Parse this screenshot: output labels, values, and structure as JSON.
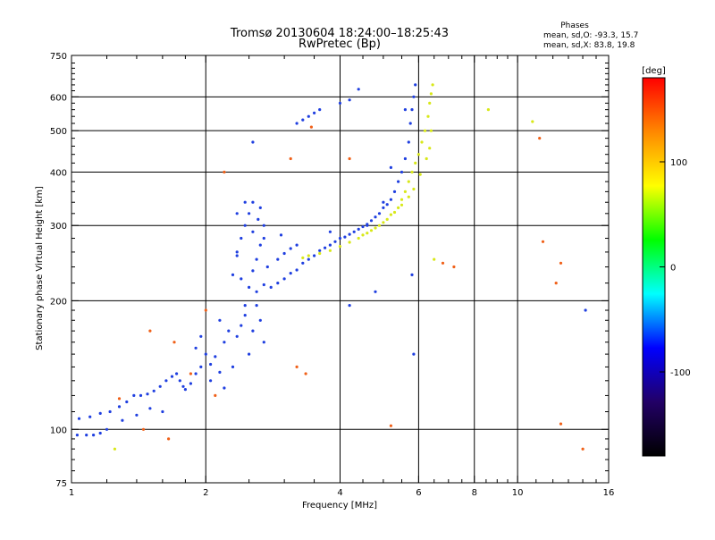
{
  "chart_data": {
    "type": "scatter",
    "title": "Tromsø 20130604 18:24:00–18:25:43",
    "subtitle": "RwPretec (Bp)",
    "stats": {
      "heading": "Phases",
      "line1": "mean, sd,O: -93.3, 15.7",
      "line2": "mean, sd,X:  83.8, 19.8"
    },
    "xlabel": "Frequency [MHz]",
    "ylabel": "Stationary phase Virtual Height [km]",
    "x_scale": "log",
    "y_scale": "log",
    "xlim": [
      1,
      16
    ],
    "ylim": [
      75,
      750
    ],
    "x_ticks": [
      1,
      2,
      4,
      6,
      8,
      10,
      16
    ],
    "x_tick_labels": [
      "1",
      "2",
      "4",
      "6",
      "8",
      "10",
      "16"
    ],
    "x_minor_ticks": [
      1.2,
      1.4,
      1.6,
      1.8,
      2.5,
      3,
      3.5,
      4.5,
      5,
      5.5,
      6.5,
      7,
      7.5,
      8.5,
      9,
      9.5,
      11,
      12,
      13,
      14,
      15
    ],
    "x_gridlines": [
      2,
      4,
      6,
      8,
      10
    ],
    "y_ticks": [
      75,
      100,
      200,
      300,
      400,
      500,
      600,
      750
    ],
    "y_tick_labels": [
      "75",
      "100",
      "200",
      "300",
      "400",
      "500",
      "600",
      "750"
    ],
    "y_minor_ticks": [
      80,
      85,
      90,
      95,
      110,
      120,
      130,
      140,
      150,
      160,
      170,
      180,
      190,
      220,
      240,
      260,
      280,
      320,
      340,
      360,
      380,
      420,
      440,
      460,
      480,
      520,
      540,
      560,
      580,
      620,
      640,
      660,
      680,
      700,
      720
    ],
    "y_gridlines": [
      100,
      200,
      300,
      400,
      500,
      600
    ],
    "grid": true,
    "colorbar": {
      "label": "deg",
      "range": [
        -180,
        180
      ],
      "ticks": [
        100,
        0,
        -100
      ],
      "tick_labels": [
        "100",
        "0",
        "-100"
      ],
      "colors": [
        "#ff0000",
        "#ff8800",
        "#ffff00",
        "#00ff00",
        "#00ffff",
        "#0000ff",
        "#220066",
        "#000000"
      ]
    },
    "series": [
      {
        "name": "O",
        "color": "#1f3fe0",
        "points": [
          [
            1.03,
            97
          ],
          [
            1.08,
            97
          ],
          [
            1.12,
            97
          ],
          [
            1.16,
            98
          ],
          [
            1.2,
            100
          ],
          [
            1.04,
            106
          ],
          [
            1.1,
            107
          ],
          [
            1.16,
            109
          ],
          [
            1.22,
            110
          ],
          [
            1.28,
            113
          ],
          [
            1.33,
            116
          ],
          [
            1.38,
            120
          ],
          [
            1.43,
            120
          ],
          [
            1.48,
            121
          ],
          [
            1.53,
            123
          ],
          [
            1.58,
            126
          ],
          [
            1.63,
            130
          ],
          [
            1.68,
            133
          ],
          [
            1.72,
            135
          ],
          [
            1.75,
            130
          ],
          [
            1.78,
            126
          ],
          [
            1.8,
            124
          ],
          [
            1.85,
            128
          ],
          [
            1.9,
            135
          ],
          [
            1.95,
            140
          ],
          [
            2.0,
            150
          ],
          [
            2.05,
            142
          ],
          [
            2.1,
            148
          ],
          [
            2.15,
            136
          ],
          [
            2.2,
            160
          ],
          [
            2.25,
            170
          ],
          [
            2.3,
            140
          ],
          [
            2.35,
            165
          ],
          [
            2.4,
            175
          ],
          [
            2.45,
            185
          ],
          [
            2.5,
            150
          ],
          [
            2.55,
            170
          ],
          [
            2.6,
            195
          ],
          [
            2.65,
            180
          ],
          [
            2.7,
            160
          ],
          [
            2.3,
            230
          ],
          [
            2.35,
            260
          ],
          [
            2.4,
            280
          ],
          [
            2.45,
            300
          ],
          [
            2.5,
            320
          ],
          [
            2.55,
            290
          ],
          [
            2.6,
            250
          ],
          [
            2.65,
            270
          ],
          [
            2.7,
            300
          ],
          [
            2.75,
            240
          ],
          [
            2.35,
            320
          ],
          [
            2.45,
            340
          ],
          [
            2.55,
            340
          ],
          [
            2.62,
            310
          ],
          [
            2.7,
            280
          ],
          [
            2.4,
            225
          ],
          [
            2.5,
            215
          ],
          [
            2.6,
            210
          ],
          [
            2.7,
            218
          ],
          [
            2.8,
            215
          ],
          [
            2.9,
            220
          ],
          [
            3.0,
            225
          ],
          [
            3.1,
            232
          ],
          [
            3.2,
            236
          ],
          [
            3.3,
            245
          ],
          [
            3.4,
            250
          ],
          [
            3.5,
            255
          ],
          [
            3.6,
            262
          ],
          [
            3.7,
            266
          ],
          [
            3.8,
            270
          ],
          [
            3.9,
            275
          ],
          [
            4.0,
            280
          ],
          [
            4.1,
            282
          ],
          [
            4.2,
            286
          ],
          [
            4.3,
            290
          ],
          [
            4.4,
            294
          ],
          [
            4.5,
            298
          ],
          [
            4.6,
            302
          ],
          [
            4.7,
            308
          ],
          [
            4.8,
            314
          ],
          [
            4.9,
            320
          ],
          [
            5.0,
            330
          ],
          [
            5.1,
            336
          ],
          [
            5.2,
            345
          ],
          [
            5.3,
            360
          ],
          [
            5.4,
            380
          ],
          [
            5.5,
            400
          ],
          [
            5.6,
            430
          ],
          [
            5.7,
            470
          ],
          [
            5.75,
            520
          ],
          [
            5.8,
            560
          ],
          [
            5.85,
            600
          ],
          [
            5.9,
            640
          ],
          [
            3.2,
            520
          ],
          [
            3.3,
            530
          ],
          [
            3.4,
            540
          ],
          [
            3.5,
            550
          ],
          [
            3.6,
            560
          ],
          [
            4.0,
            580
          ],
          [
            4.2,
            590
          ],
          [
            5.0,
            340
          ],
          [
            4.6,
            300
          ],
          [
            2.9,
            250
          ],
          [
            3.0,
            258
          ],
          [
            3.1,
            265
          ],
          [
            3.2,
            270
          ],
          [
            5.8,
            230
          ],
          [
            5.85,
            150
          ],
          [
            4.8,
            210
          ],
          [
            4.2,
            195
          ],
          [
            2.65,
            330
          ],
          [
            2.55,
            235
          ],
          [
            2.35,
            255
          ],
          [
            2.45,
            195
          ],
          [
            2.15,
            180
          ],
          [
            1.95,
            165
          ],
          [
            1.9,
            155
          ],
          [
            2.05,
            130
          ],
          [
            2.2,
            125
          ],
          [
            1.6,
            110
          ],
          [
            1.5,
            112
          ],
          [
            1.4,
            108
          ],
          [
            1.3,
            105
          ],
          [
            2.55,
            470
          ],
          [
            2.95,
            285
          ],
          [
            3.8,
            290
          ],
          [
            14.2,
            190
          ],
          [
            4.4,
            625
          ],
          [
            5.6,
            560
          ],
          [
            5.2,
            410
          ]
        ]
      },
      {
        "name": "X",
        "color": "#d8e818",
        "points": [
          [
            3.6,
            258
          ],
          [
            3.8,
            262
          ],
          [
            4.0,
            268
          ],
          [
            4.2,
            274
          ],
          [
            4.4,
            280
          ],
          [
            4.6,
            288
          ],
          [
            4.8,
            296
          ],
          [
            5.0,
            305
          ],
          [
            5.2,
            318
          ],
          [
            5.4,
            330
          ],
          [
            5.5,
            345
          ],
          [
            5.6,
            360
          ],
          [
            5.7,
            380
          ],
          [
            5.8,
            400
          ],
          [
            5.9,
            420
          ],
          [
            6.0,
            440
          ],
          [
            6.1,
            470
          ],
          [
            6.2,
            500
          ],
          [
            6.3,
            540
          ],
          [
            6.35,
            580
          ],
          [
            6.4,
            610
          ],
          [
            6.45,
            640
          ],
          [
            4.5,
            285
          ],
          [
            4.7,
            292
          ],
          [
            4.9,
            300
          ],
          [
            5.1,
            310
          ],
          [
            5.3,
            322
          ],
          [
            5.5,
            335
          ],
          [
            5.7,
            350
          ],
          [
            5.85,
            365
          ],
          [
            6.05,
            395
          ],
          [
            6.25,
            430
          ],
          [
            6.35,
            455
          ],
          [
            6.4,
            500
          ],
          [
            3.4,
            255
          ],
          [
            3.3,
            252
          ],
          [
            10.8,
            525
          ],
          [
            8.6,
            560
          ],
          [
            1.25,
            90
          ],
          [
            6.5,
            250
          ]
        ]
      },
      {
        "name": "scatter",
        "color": "#f06018",
        "points": [
          [
            1.45,
            100
          ],
          [
            2.1,
            120
          ],
          [
            1.65,
            95
          ],
          [
            1.85,
            135
          ],
          [
            12.5,
            245
          ],
          [
            12.5,
            103
          ],
          [
            11.2,
            480
          ],
          [
            3.1,
            430
          ],
          [
            3.45,
            510
          ],
          [
            4.2,
            430
          ],
          [
            6.8,
            245
          ],
          [
            7.2,
            240
          ],
          [
            11.4,
            275
          ],
          [
            12.2,
            220
          ],
          [
            1.5,
            170
          ],
          [
            2.0,
            190
          ],
          [
            2.2,
            400
          ],
          [
            1.7,
            160
          ],
          [
            1.28,
            118
          ],
          [
            5.2,
            102
          ],
          [
            3.2,
            140
          ],
          [
            3.35,
            135
          ],
          [
            14.0,
            90
          ]
        ]
      }
    ]
  }
}
